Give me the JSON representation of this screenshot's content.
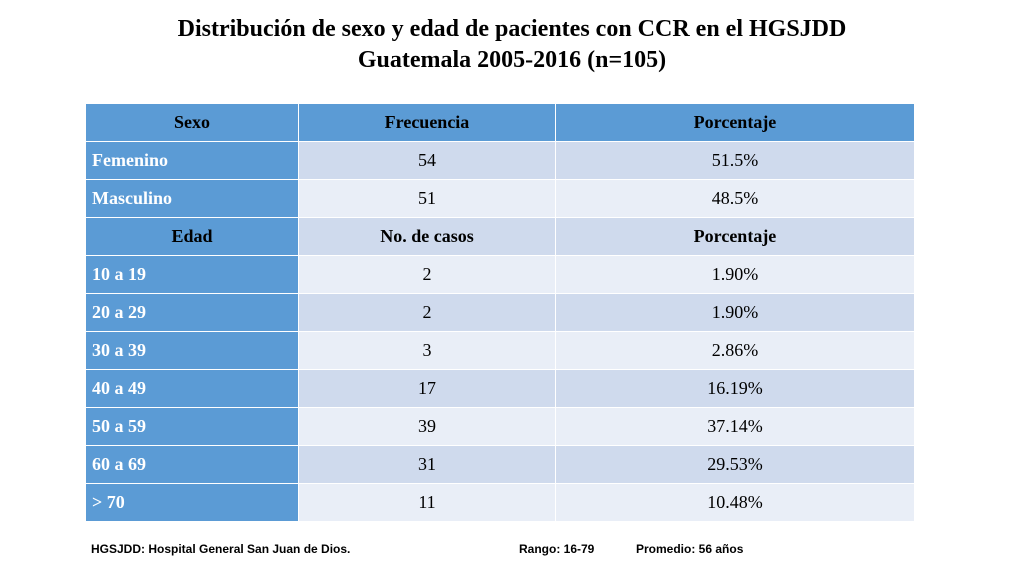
{
  "title": {
    "line1": "Distribución de sexo y edad de pacientes con CCR en el HGSJDD",
    "line2": "Guatemala 2005-2016 (n=105)"
  },
  "table": {
    "header": [
      "Sexo",
      "Frecuencia",
      "Porcentaje"
    ],
    "sex_rows": [
      [
        "Femenino",
        "54",
        "51.5%"
      ],
      [
        "Masculino",
        "51",
        "48.5%"
      ]
    ],
    "age_header": [
      "Edad",
      "No. de casos",
      "Porcentaje"
    ],
    "age_rows": [
      [
        "10 a 19",
        "2",
        "1.90%"
      ],
      [
        "20 a 29",
        "2",
        "1.90%"
      ],
      [
        "30 a 39",
        "3",
        "2.86%"
      ],
      [
        "40 a 49",
        "17",
        "16.19%"
      ],
      [
        "50 a 59",
        "39",
        "37.14%"
      ],
      [
        "60 a 69",
        "31",
        "29.53%"
      ],
      [
        "> 70",
        "11",
        "10.48%"
      ]
    ]
  },
  "footer": {
    "abbrev": "HGSJDD: Hospital General San Juan de Dios.",
    "range": "Rango: 16-79",
    "mean": "Promedio: 56 años"
  },
  "colors": {
    "header_blue": "#5b9bd5",
    "row_dark": "#cfdaed",
    "row_light": "#e9eef7"
  }
}
